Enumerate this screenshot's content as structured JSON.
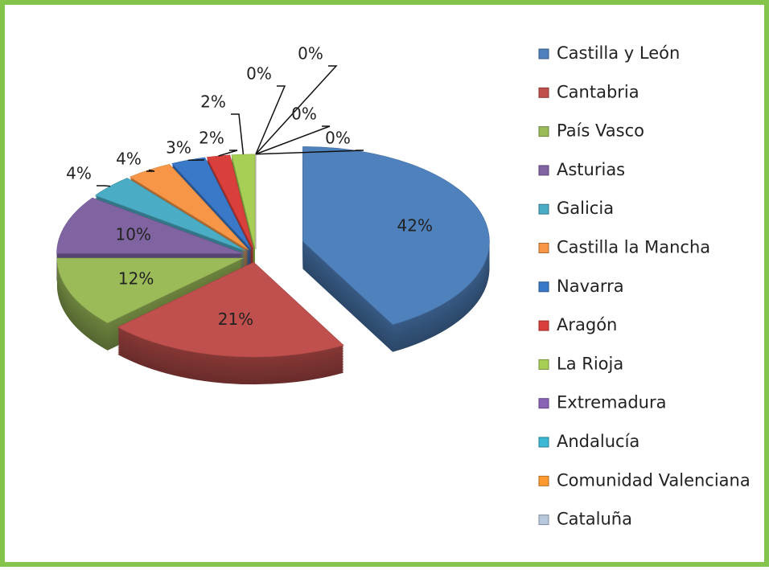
{
  "chart_data": {
    "type": "pie",
    "categories": [
      "Castilla y León",
      "Cantabria",
      "País Vasco",
      "Asturias",
      "Galicia",
      "Castilla la Mancha",
      "Navarra",
      "Aragón",
      "La Rioja",
      "Extremadura",
      "Andalucía",
      "Comunidad Valenciana",
      "Cataluña"
    ],
    "values": [
      42,
      21,
      12,
      10,
      4,
      4,
      3,
      2,
      2,
      0,
      0,
      0,
      0
    ],
    "value_labels": [
      "42%",
      "21%",
      "12%",
      "10%",
      "4%",
      "4%",
      "3%",
      "2%",
      "2%",
      "0%",
      "0%",
      "0%",
      "0%"
    ],
    "colors": [
      "#4f81bd",
      "#c0504d",
      "#9bbb59",
      "#8064a2",
      "#4bacc6",
      "#f79646",
      "#3a78c8",
      "#d9403c",
      "#a8cf55",
      "#8a63b7",
      "#3cb8d4",
      "#ff9a2e",
      "#b8c8dc"
    ],
    "legend": "right"
  }
}
